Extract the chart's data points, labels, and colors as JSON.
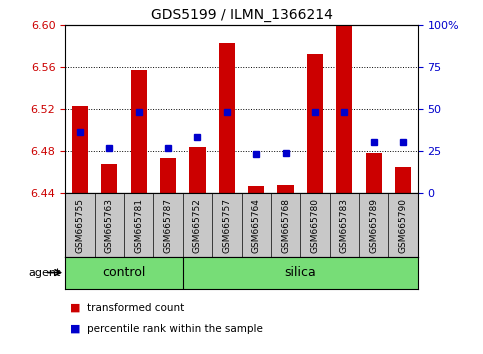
{
  "title": "GDS5199 / ILMN_1366214",
  "samples": [
    "GSM665755",
    "GSM665763",
    "GSM665781",
    "GSM665787",
    "GSM665752",
    "GSM665757",
    "GSM665764",
    "GSM665768",
    "GSM665780",
    "GSM665783",
    "GSM665789",
    "GSM665790"
  ],
  "transformed_counts": [
    6.523,
    6.468,
    6.557,
    6.473,
    6.484,
    6.583,
    6.447,
    6.448,
    6.572,
    6.6,
    6.478,
    6.465
  ],
  "percentile_ranks": [
    36,
    27,
    48,
    27,
    33,
    48,
    23,
    24,
    48,
    48,
    30,
    30
  ],
  "ymin": 6.44,
  "ymax": 6.6,
  "y2min": 0,
  "y2max": 100,
  "yticks": [
    6.44,
    6.48,
    6.52,
    6.56,
    6.6
  ],
  "y2ticks": [
    0,
    25,
    50,
    75,
    100
  ],
  "y2ticklabels": [
    "0",
    "25",
    "50",
    "75",
    "100%"
  ],
  "bar_color": "#cc0000",
  "dot_color": "#0000cc",
  "bar_bottom": 6.44,
  "control_count": 4,
  "silica_count": 8,
  "control_label": "control",
  "silica_label": "silica",
  "agent_label": "agent",
  "legend_bar": "transformed count",
  "legend_dot": "percentile rank within the sample",
  "gray_color": "#c8c8c8",
  "green_color": "#77dd77",
  "tick_label_color_left": "#cc0000",
  "tick_label_color_right": "#0000cc"
}
